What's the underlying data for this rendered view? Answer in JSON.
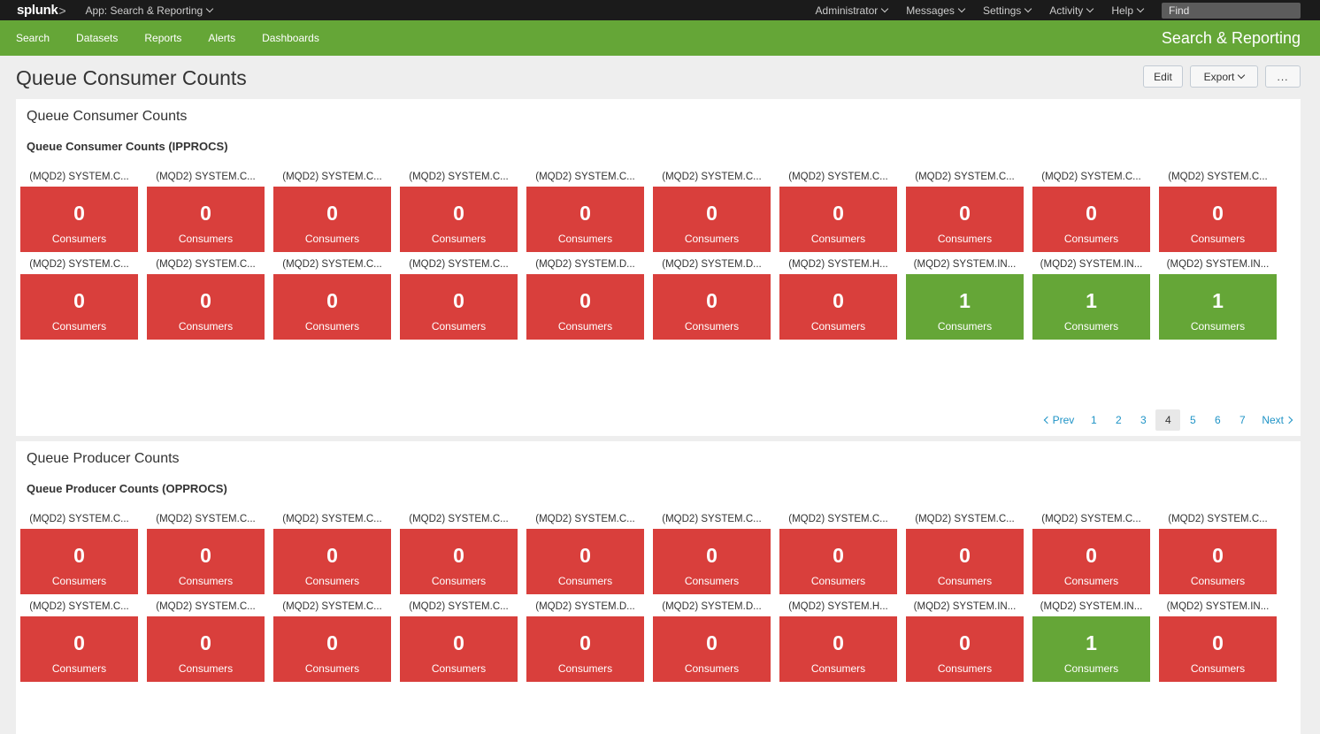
{
  "topbar": {
    "logo": "splunk",
    "app_menu": "App: Search & Reporting",
    "nav": [
      "Administrator",
      "Messages",
      "Settings",
      "Activity",
      "Help"
    ],
    "find_placeholder": "Find"
  },
  "appbar": {
    "nav": [
      "Search",
      "Datasets",
      "Reports",
      "Alerts",
      "Dashboards"
    ],
    "app_title": "Search & Reporting"
  },
  "page": {
    "title": "Queue Consumer Counts",
    "buttons": {
      "edit": "Edit",
      "export": "Export",
      "more": "..."
    }
  },
  "colors": {
    "red": "#d93f3c",
    "green": "#65a637"
  },
  "panels": [
    {
      "title": "Queue Consumer Counts",
      "viz_title": "Queue Consumer Counts (IPPROCS)",
      "tiles": [
        {
          "label": "(MQD2) SYSTEM.C...",
          "value": "0",
          "unit": "Consumers",
          "status": "red"
        },
        {
          "label": "(MQD2) SYSTEM.C...",
          "value": "0",
          "unit": "Consumers",
          "status": "red"
        },
        {
          "label": "(MQD2) SYSTEM.C...",
          "value": "0",
          "unit": "Consumers",
          "status": "red"
        },
        {
          "label": "(MQD2) SYSTEM.C...",
          "value": "0",
          "unit": "Consumers",
          "status": "red"
        },
        {
          "label": "(MQD2) SYSTEM.C...",
          "value": "0",
          "unit": "Consumers",
          "status": "red"
        },
        {
          "label": "(MQD2) SYSTEM.C...",
          "value": "0",
          "unit": "Consumers",
          "status": "red"
        },
        {
          "label": "(MQD2) SYSTEM.C...",
          "value": "0",
          "unit": "Consumers",
          "status": "red"
        },
        {
          "label": "(MQD2) SYSTEM.C...",
          "value": "0",
          "unit": "Consumers",
          "status": "red"
        },
        {
          "label": "(MQD2) SYSTEM.C...",
          "value": "0",
          "unit": "Consumers",
          "status": "red"
        },
        {
          "label": "(MQD2) SYSTEM.C...",
          "value": "0",
          "unit": "Consumers",
          "status": "red"
        },
        {
          "label": "(MQD2) SYSTEM.C...",
          "value": "0",
          "unit": "Consumers",
          "status": "red"
        },
        {
          "label": "(MQD2) SYSTEM.C...",
          "value": "0",
          "unit": "Consumers",
          "status": "red"
        },
        {
          "label": "(MQD2) SYSTEM.C...",
          "value": "0",
          "unit": "Consumers",
          "status": "red"
        },
        {
          "label": "(MQD2) SYSTEM.C...",
          "value": "0",
          "unit": "Consumers",
          "status": "red"
        },
        {
          "label": "(MQD2) SYSTEM.D...",
          "value": "0",
          "unit": "Consumers",
          "status": "red"
        },
        {
          "label": "(MQD2) SYSTEM.D...",
          "value": "0",
          "unit": "Consumers",
          "status": "red"
        },
        {
          "label": "(MQD2) SYSTEM.H...",
          "value": "0",
          "unit": "Consumers",
          "status": "red"
        },
        {
          "label": "(MQD2) SYSTEM.IN...",
          "value": "1",
          "unit": "Consumers",
          "status": "green"
        },
        {
          "label": "(MQD2) SYSTEM.IN...",
          "value": "1",
          "unit": "Consumers",
          "status": "green"
        },
        {
          "label": "(MQD2) SYSTEM.IN...",
          "value": "1",
          "unit": "Consumers",
          "status": "green"
        }
      ],
      "pagination": {
        "prev": "Prev",
        "pages": [
          "1",
          "2",
          "3",
          "4",
          "5",
          "6",
          "7"
        ],
        "current": "4",
        "next": "Next"
      }
    },
    {
      "title": "Queue Producer Counts",
      "viz_title": "Queue Producer Counts (OPPROCS)",
      "tiles": [
        {
          "label": "(MQD2) SYSTEM.C...",
          "value": "0",
          "unit": "Consumers",
          "status": "red"
        },
        {
          "label": "(MQD2) SYSTEM.C...",
          "value": "0",
          "unit": "Consumers",
          "status": "red"
        },
        {
          "label": "(MQD2) SYSTEM.C...",
          "value": "0",
          "unit": "Consumers",
          "status": "red"
        },
        {
          "label": "(MQD2) SYSTEM.C...",
          "value": "0",
          "unit": "Consumers",
          "status": "red"
        },
        {
          "label": "(MQD2) SYSTEM.C...",
          "value": "0",
          "unit": "Consumers",
          "status": "red"
        },
        {
          "label": "(MQD2) SYSTEM.C...",
          "value": "0",
          "unit": "Consumers",
          "status": "red"
        },
        {
          "label": "(MQD2) SYSTEM.C...",
          "value": "0",
          "unit": "Consumers",
          "status": "red"
        },
        {
          "label": "(MQD2) SYSTEM.C...",
          "value": "0",
          "unit": "Consumers",
          "status": "red"
        },
        {
          "label": "(MQD2) SYSTEM.C...",
          "value": "0",
          "unit": "Consumers",
          "status": "red"
        },
        {
          "label": "(MQD2) SYSTEM.C...",
          "value": "0",
          "unit": "Consumers",
          "status": "red"
        },
        {
          "label": "(MQD2) SYSTEM.C...",
          "value": "0",
          "unit": "Consumers",
          "status": "red"
        },
        {
          "label": "(MQD2) SYSTEM.C...",
          "value": "0",
          "unit": "Consumers",
          "status": "red"
        },
        {
          "label": "(MQD2) SYSTEM.C...",
          "value": "0",
          "unit": "Consumers",
          "status": "red"
        },
        {
          "label": "(MQD2) SYSTEM.C...",
          "value": "0",
          "unit": "Consumers",
          "status": "red"
        },
        {
          "label": "(MQD2) SYSTEM.D...",
          "value": "0",
          "unit": "Consumers",
          "status": "red"
        },
        {
          "label": "(MQD2) SYSTEM.D...",
          "value": "0",
          "unit": "Consumers",
          "status": "red"
        },
        {
          "label": "(MQD2) SYSTEM.H...",
          "value": "0",
          "unit": "Consumers",
          "status": "red"
        },
        {
          "label": "(MQD2) SYSTEM.IN...",
          "value": "0",
          "unit": "Consumers",
          "status": "red"
        },
        {
          "label": "(MQD2) SYSTEM.IN...",
          "value": "1",
          "unit": "Consumers",
          "status": "green"
        },
        {
          "label": "(MQD2) SYSTEM.IN...",
          "value": "0",
          "unit": "Consumers",
          "status": "red"
        }
      ]
    }
  ]
}
